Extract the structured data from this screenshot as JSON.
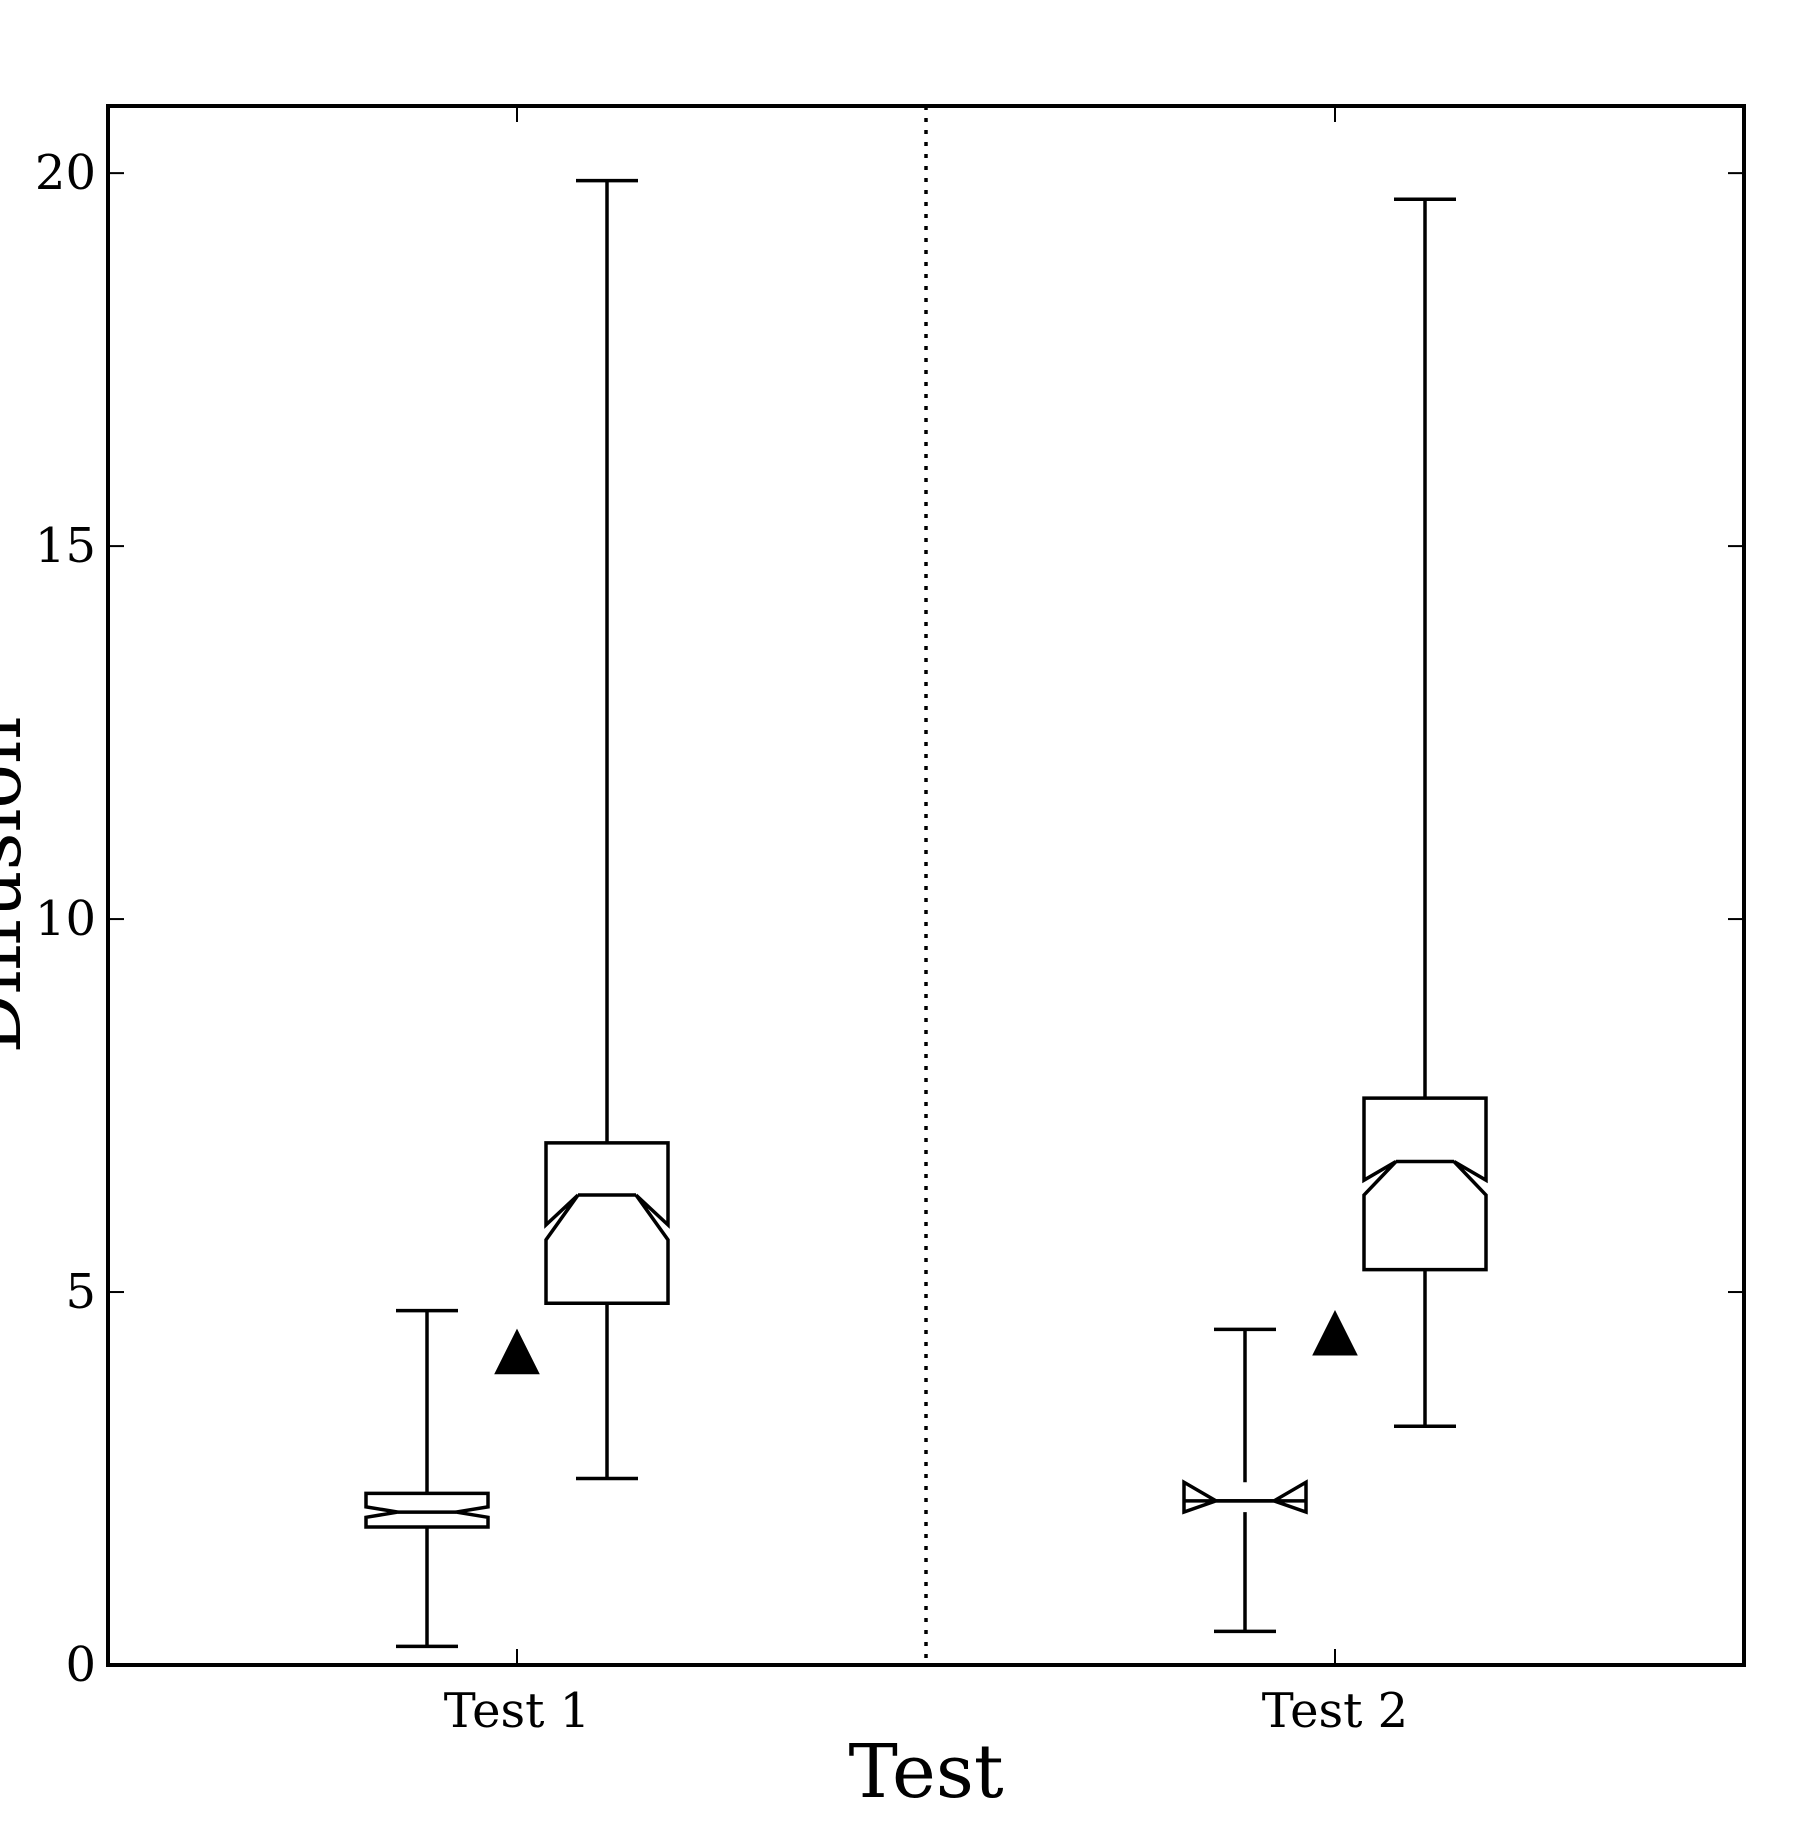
{
  "chart_data": {
    "type": "boxplot",
    "title": "",
    "xlabel": "Test",
    "ylabel": "Diffusion",
    "ylim": [
      0,
      20.9
    ],
    "yticks": [
      0,
      5,
      10,
      15,
      20
    ],
    "grid": false,
    "legend": "none",
    "categories": [
      "Test 1",
      "Test 2"
    ],
    "separator_between_categories": "dotted",
    "marker": "triangle",
    "groups": [
      {
        "category": "Test 1",
        "marker_value": 4.2,
        "boxes": [
          {
            "whisker_low": 0.25,
            "q1": 1.85,
            "median": 2.05,
            "q3": 2.3,
            "whisker_high": 4.75,
            "notch_low": 1.98,
            "notch_high": 2.12
          },
          {
            "whisker_low": 2.5,
            "q1": 4.85,
            "median": 6.3,
            "q3": 7.0,
            "whisker_high": 19.9,
            "notch_low": 5.7,
            "notch_high": 5.9
          }
        ]
      },
      {
        "category": "Test 2",
        "marker_value": 4.45,
        "boxes": [
          {
            "whisker_low": 0.45,
            "q1": 2.2,
            "median": 2.2,
            "q3": 2.2,
            "whisker_high": 4.5,
            "notch_low": 2.05,
            "notch_high": 2.45
          },
          {
            "whisker_low": 3.2,
            "q1": 5.3,
            "median": 6.75,
            "q3": 7.6,
            "whisker_high": 19.65,
            "notch_low": 6.3,
            "notch_high": 6.5
          }
        ]
      }
    ]
  }
}
